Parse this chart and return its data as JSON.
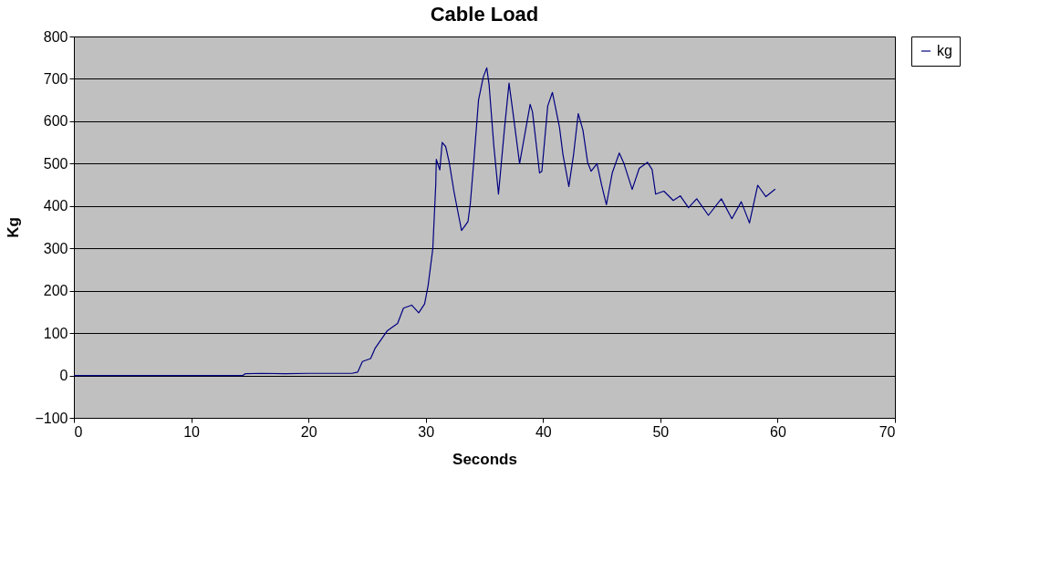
{
  "chart_data": {
    "type": "line",
    "title": "Cable Load",
    "xlabel": "Seconds",
    "ylabel": "Kg",
    "xlim": [
      0,
      70
    ],
    "xticks": [
      0,
      10,
      20,
      30,
      40,
      50,
      60,
      70
    ],
    "ylim": [
      -100,
      800
    ],
    "yticks": [
      -100,
      0,
      100,
      200,
      300,
      400,
      500,
      600,
      700,
      800
    ],
    "grid": "y",
    "legend": "right",
    "marker": "none",
    "line_style": "solid",
    "series": [
      {
        "name": "kg",
        "color": "#000080",
        "x": [
          0,
          14.4,
          14.6,
          16,
          18,
          20,
          22,
          23.7,
          24.2,
          24.6,
          25.3,
          25.7,
          26.7,
          27.6,
          28.1,
          28.8,
          29.4,
          29.9,
          30.2,
          30.6,
          30.85,
          30.9,
          31.2,
          31.4,
          31.7,
          32.0,
          32.4,
          32.7,
          33.05,
          33.6,
          33.8,
          34.1,
          34.5,
          34.9,
          35.2,
          35.4,
          35.8,
          36.2,
          36.7,
          37.1,
          37.5,
          38.0,
          38.9,
          39.1,
          39.7,
          39.9,
          40.4,
          40.8,
          41.4,
          41.7,
          42.2,
          42.6,
          43.0,
          43.4,
          43.8,
          44.1,
          44.6,
          45.0,
          45.4,
          45.9,
          46.5,
          46.9,
          47.6,
          48.2,
          48.9,
          49.3,
          49.6,
          50.3,
          51.1,
          51.7,
          52.4,
          53.1,
          54.1,
          55.2,
          56.1,
          56.9,
          57.6,
          58.3,
          59.0,
          59.8
        ],
        "values": [
          0,
          0,
          4,
          5,
          4,
          5,
          5,
          5,
          8,
          33,
          40,
          65,
          105,
          123,
          159,
          166,
          148,
          169,
          212,
          299,
          449,
          510,
          485,
          550,
          540,
          503,
          435,
          392,
          342,
          363,
          406,
          507,
          650,
          704,
          726,
          686,
          543,
          428,
          579,
          690,
          607,
          500,
          640,
          622,
          478,
          482,
          636,
          668,
          586,
          521,
          446,
          521,
          618,
          579,
          503,
          482,
          500,
          449,
          403,
          478,
          525,
          500,
          439,
          489,
          503,
          486,
          428,
          435,
          413,
          424,
          396,
          417,
          378,
          417,
          370,
          410,
          360,
          449,
          422,
          440
        ]
      }
    ]
  }
}
